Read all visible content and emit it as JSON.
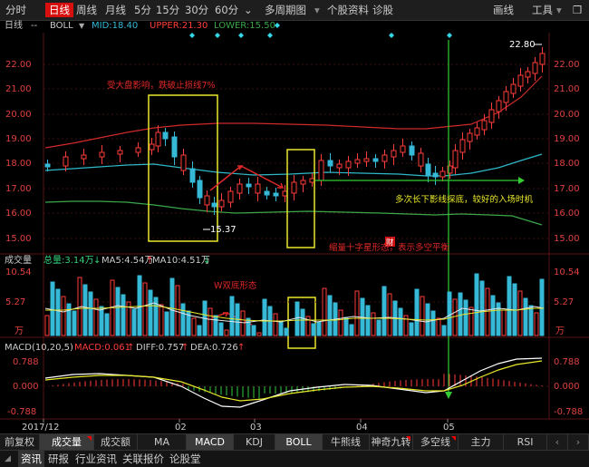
{
  "toolbar": {
    "periods": [
      "分时",
      "日线",
      "周线",
      "月线",
      "5分",
      "15分",
      "30分",
      "60分"
    ],
    "active_period": "日线",
    "multi_period": "多周期图",
    "more": "个股资料",
    "diagnose": "诊股",
    "draw_line": "画线",
    "tools": "工具"
  },
  "boll_header": {
    "period": "日线",
    "dashes": "--",
    "indicator": "BOLL",
    "mid_label": "MID:18.40",
    "upper_label": "UPPER:21.30",
    "lower_label": "LOWER:15.50"
  },
  "price_axis": [
    "22.00",
    "21.00",
    "20.00",
    "19.00",
    "18.00",
    "17.00",
    "16.00",
    "15.00"
  ],
  "annotations": {
    "high": "22.80",
    "low": "15.37",
    "note1": "受大盘影响，跌破止损线7%",
    "note2": "多次长下影线探底，较好的入场时机",
    "note3": "缩量十字星形态，表示多空平衡",
    "note4": "W双底形态",
    "note5": "财"
  },
  "volume_header": {
    "title": "成交量",
    "total": "总量:3.14万",
    "ma5": "MA5:4.54万",
    "ma10": "MA10:4.51万"
  },
  "volume_axis": [
    "10.54",
    "5.27",
    "万"
  ],
  "macd_header": {
    "title": "MACD(10,20,5)",
    "macd": "MACD:0.061",
    "diff": "DIFF:0.757",
    "dea": "DEA:0.726"
  },
  "macd_axis": [
    "0.788",
    "0.000",
    "-0.788"
  ],
  "date_axis": [
    "2017/12",
    "02",
    "03",
    "04",
    "05"
  ],
  "bottom_tabs": [
    "前复权",
    "成交量",
    "成交额",
    "MA",
    "MACD",
    "KDJ",
    "BOLL",
    "牛熊线",
    "神奇九转",
    "多空线",
    "主力",
    "RSI"
  ],
  "info_tabs": [
    "资讯",
    "研报",
    "行业资讯",
    "关联报价",
    "论股堂"
  ],
  "colors": {
    "up": "#ff3d3d",
    "down": "#35b9d6",
    "mid": "#ff8c1a",
    "upper": "#ff3d3d",
    "lower": "#3aa84a",
    "box": "#e8e82a",
    "arrow": "#33cc33"
  }
}
